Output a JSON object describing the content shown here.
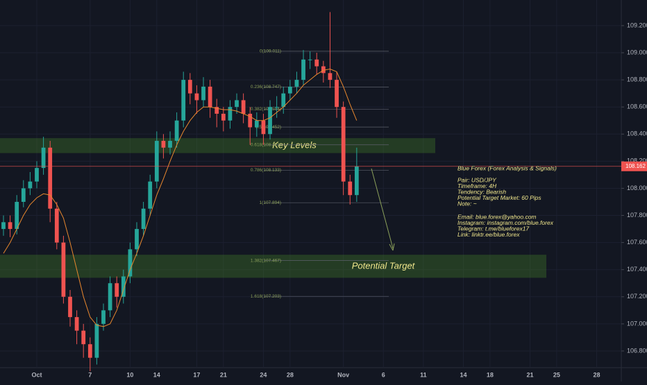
{
  "chart_data": {
    "type": "candlestick",
    "x": [
      -2.5,
      -2,
      -1.5,
      -1,
      -0.5,
      0,
      0.5,
      1,
      1.5,
      2,
      2.5,
      3,
      3.5,
      4,
      4.5,
      5,
      5.5,
      6,
      6.5,
      7,
      7.5,
      8,
      8.5,
      9,
      9.5,
      10,
      10.5,
      11,
      11.5,
      12,
      12.5,
      13,
      13.5,
      14,
      14.5,
      15,
      15.5,
      16,
      16.5,
      17,
      17.5,
      18,
      18.5,
      19,
      19.5,
      20,
      20.5,
      21,
      21.5,
      22,
      22.5,
      23,
      23.5,
      24
    ],
    "open": [
      107.7,
      107.75,
      107.7,
      107.9,
      108.0,
      108.05,
      108.15,
      108.3,
      107.85,
      107.6,
      107.2,
      107.05,
      106.95,
      106.85,
      106.75,
      107.0,
      107.1,
      107.3,
      107.2,
      107.35,
      107.55,
      107.7,
      107.85,
      108.05,
      108.35,
      108.3,
      108.35,
      108.5,
      108.8,
      108.7,
      108.65,
      108.75,
      108.6,
      108.55,
      108.5,
      108.6,
      108.65,
      108.55,
      108.45,
      108.5,
      108.4,
      108.6,
      108.6,
      108.7,
      108.75,
      108.8,
      108.95,
      108.95,
      108.9,
      108.85,
      108.8,
      108.6,
      108.05,
      107.95
    ],
    "high": [
      107.8,
      107.8,
      107.95,
      108.06,
      108.12,
      108.2,
      108.38,
      108.35,
      107.9,
      107.65,
      107.25,
      107.1,
      107.0,
      106.9,
      107.05,
      107.15,
      107.35,
      107.35,
      107.4,
      107.6,
      107.75,
      107.9,
      108.1,
      108.42,
      108.4,
      108.42,
      108.56,
      108.86,
      108.85,
      108.76,
      108.82,
      108.8,
      108.66,
      108.6,
      108.65,
      108.7,
      108.7,
      108.6,
      108.56,
      108.55,
      108.65,
      108.68,
      108.75,
      108.8,
      108.86,
      109.02,
      109.01,
      109.0,
      108.94,
      109.3,
      108.86,
      108.64,
      108.1,
      108.3
    ],
    "low": [
      107.65,
      107.64,
      107.66,
      107.86,
      107.95,
      108.0,
      108.1,
      107.75,
      107.55,
      107.15,
      106.98,
      106.85,
      106.75,
      106.65,
      106.7,
      106.95,
      107.05,
      107.12,
      107.15,
      107.3,
      107.5,
      107.65,
      107.8,
      108.0,
      108.22,
      108.25,
      108.3,
      108.45,
      108.62,
      108.55,
      108.6,
      108.52,
      108.45,
      108.42,
      108.44,
      108.55,
      108.48,
      108.32,
      108.38,
      108.32,
      108.36,
      108.52,
      108.55,
      108.65,
      108.7,
      108.76,
      108.88,
      108.84,
      108.78,
      108.74,
      108.52,
      107.95,
      107.88,
      107.9
    ],
    "close": [
      107.75,
      107.7,
      107.9,
      108.0,
      108.05,
      108.15,
      108.3,
      107.85,
      107.6,
      107.2,
      107.05,
      106.95,
      106.85,
      106.75,
      107.0,
      107.1,
      107.3,
      107.2,
      107.35,
      107.55,
      107.7,
      107.85,
      108.05,
      108.35,
      108.3,
      108.35,
      108.5,
      108.8,
      108.7,
      108.65,
      108.75,
      108.6,
      108.55,
      108.5,
      108.6,
      108.65,
      108.55,
      108.45,
      108.5,
      108.4,
      108.6,
      108.6,
      108.7,
      108.75,
      108.8,
      108.95,
      108.95,
      108.9,
      108.85,
      108.8,
      108.6,
      108.05,
      107.95,
      108.162
    ],
    "up_color": "#26a69a",
    "down_color": "#ef5350",
    "ma": {
      "color": "#e8872e",
      "values": [
        107.52,
        107.6,
        107.7,
        107.8,
        107.88,
        107.93,
        107.96,
        107.95,
        107.88,
        107.78,
        107.6,
        107.4,
        107.2,
        107.05,
        106.99,
        106.98,
        107.0,
        107.1,
        107.25,
        107.4,
        107.52,
        107.65,
        107.8,
        107.95,
        108.07,
        108.2,
        108.32,
        108.42,
        108.5,
        108.56,
        108.6,
        108.6,
        108.59,
        108.58,
        108.58,
        108.57,
        108.55,
        108.53,
        108.5,
        108.5,
        108.52,
        108.56,
        108.6,
        108.65,
        108.7,
        108.76,
        108.8,
        108.84,
        108.87,
        108.88,
        108.86,
        108.75,
        108.62,
        108.5
      ]
    },
    "xlim": [
      -2.76,
      43.85
    ],
    "xticks": [
      {
        "value": 0,
        "label": "Oct"
      },
      {
        "value": 4,
        "label": "7"
      },
      {
        "value": 7,
        "label": "10"
      },
      {
        "value": 9,
        "label": "14"
      },
      {
        "value": 12,
        "label": "17"
      },
      {
        "value": 14,
        "label": "21"
      },
      {
        "value": 17,
        "label": "24"
      },
      {
        "value": 19,
        "label": "28"
      },
      {
        "value": 23,
        "label": "Nov"
      },
      {
        "value": 26,
        "label": "6"
      },
      {
        "value": 29,
        "label": "11"
      },
      {
        "value": 32,
        "label": "14"
      },
      {
        "value": 34,
        "label": "18"
      },
      {
        "value": 37,
        "label": "21"
      },
      {
        "value": 39,
        "label": "25"
      },
      {
        "value": 42,
        "label": "28"
      }
    ],
    "ylim": [
      106.677,
      109.389
    ],
    "yticks": [
      {
        "value": 109.2,
        "label": "109.200"
      },
      {
        "value": 109.0,
        "label": "109.000"
      },
      {
        "value": 108.8,
        "label": "108.800"
      },
      {
        "value": 108.6,
        "label": "108.600"
      },
      {
        "value": 108.4,
        "label": "108.400"
      },
      {
        "value": 108.2,
        "label": "108.200"
      },
      {
        "value": 108.0,
        "label": "108.000"
      },
      {
        "value": 107.8,
        "label": "107.800"
      },
      {
        "value": 107.6,
        "label": "107.600"
      },
      {
        "value": 107.4,
        "label": "107.400"
      },
      {
        "value": 107.2,
        "label": "107.200"
      },
      {
        "value": 107.0,
        "label": "107.000"
      },
      {
        "value": 106.8,
        "label": "106.800"
      }
    ],
    "last_price": {
      "value": 108.162,
      "label": "108.162",
      "color": "#ef5350"
    },
    "fib_levels": [
      {
        "value": 109.011,
        "label": "0(109.011)"
      },
      {
        "value": 108.747,
        "label": "0.236(108.747)"
      },
      {
        "value": 108.584,
        "label": "0.382(108.584)"
      },
      {
        "value": 108.452,
        "label": "0.5(108.452)"
      },
      {
        "value": 108.321,
        "label": "0.618(108.321)"
      },
      {
        "value": 108.133,
        "label": "0.786(108.133)"
      },
      {
        "value": 107.894,
        "label": "1(107.894)"
      },
      {
        "value": 107.467,
        "label": "1.382(107.467)"
      },
      {
        "value": 107.203,
        "label": "1.618(107.203)"
      }
    ],
    "zones": [
      {
        "text": "Key Levels",
        "range": [
          108.26,
          108.37
        ]
      },
      {
        "text": "Potential Target",
        "range": [
          107.34,
          107.51
        ]
      }
    ],
    "info": [
      "Blue Forex (Forex Analysis & Signals)",
      "Pair: USD/JPY",
      "Timeframe: 4H",
      "Tendency: Bearish",
      "Potential Target Market: 60 Pips",
      "Note: ~",
      "Email: blue.forex@yahoo.com",
      "Instagram: instagram.com/blue.forex",
      "Telegram: t.me/blueforex17",
      "Link: linktr.ee/blue.forex"
    ]
  }
}
